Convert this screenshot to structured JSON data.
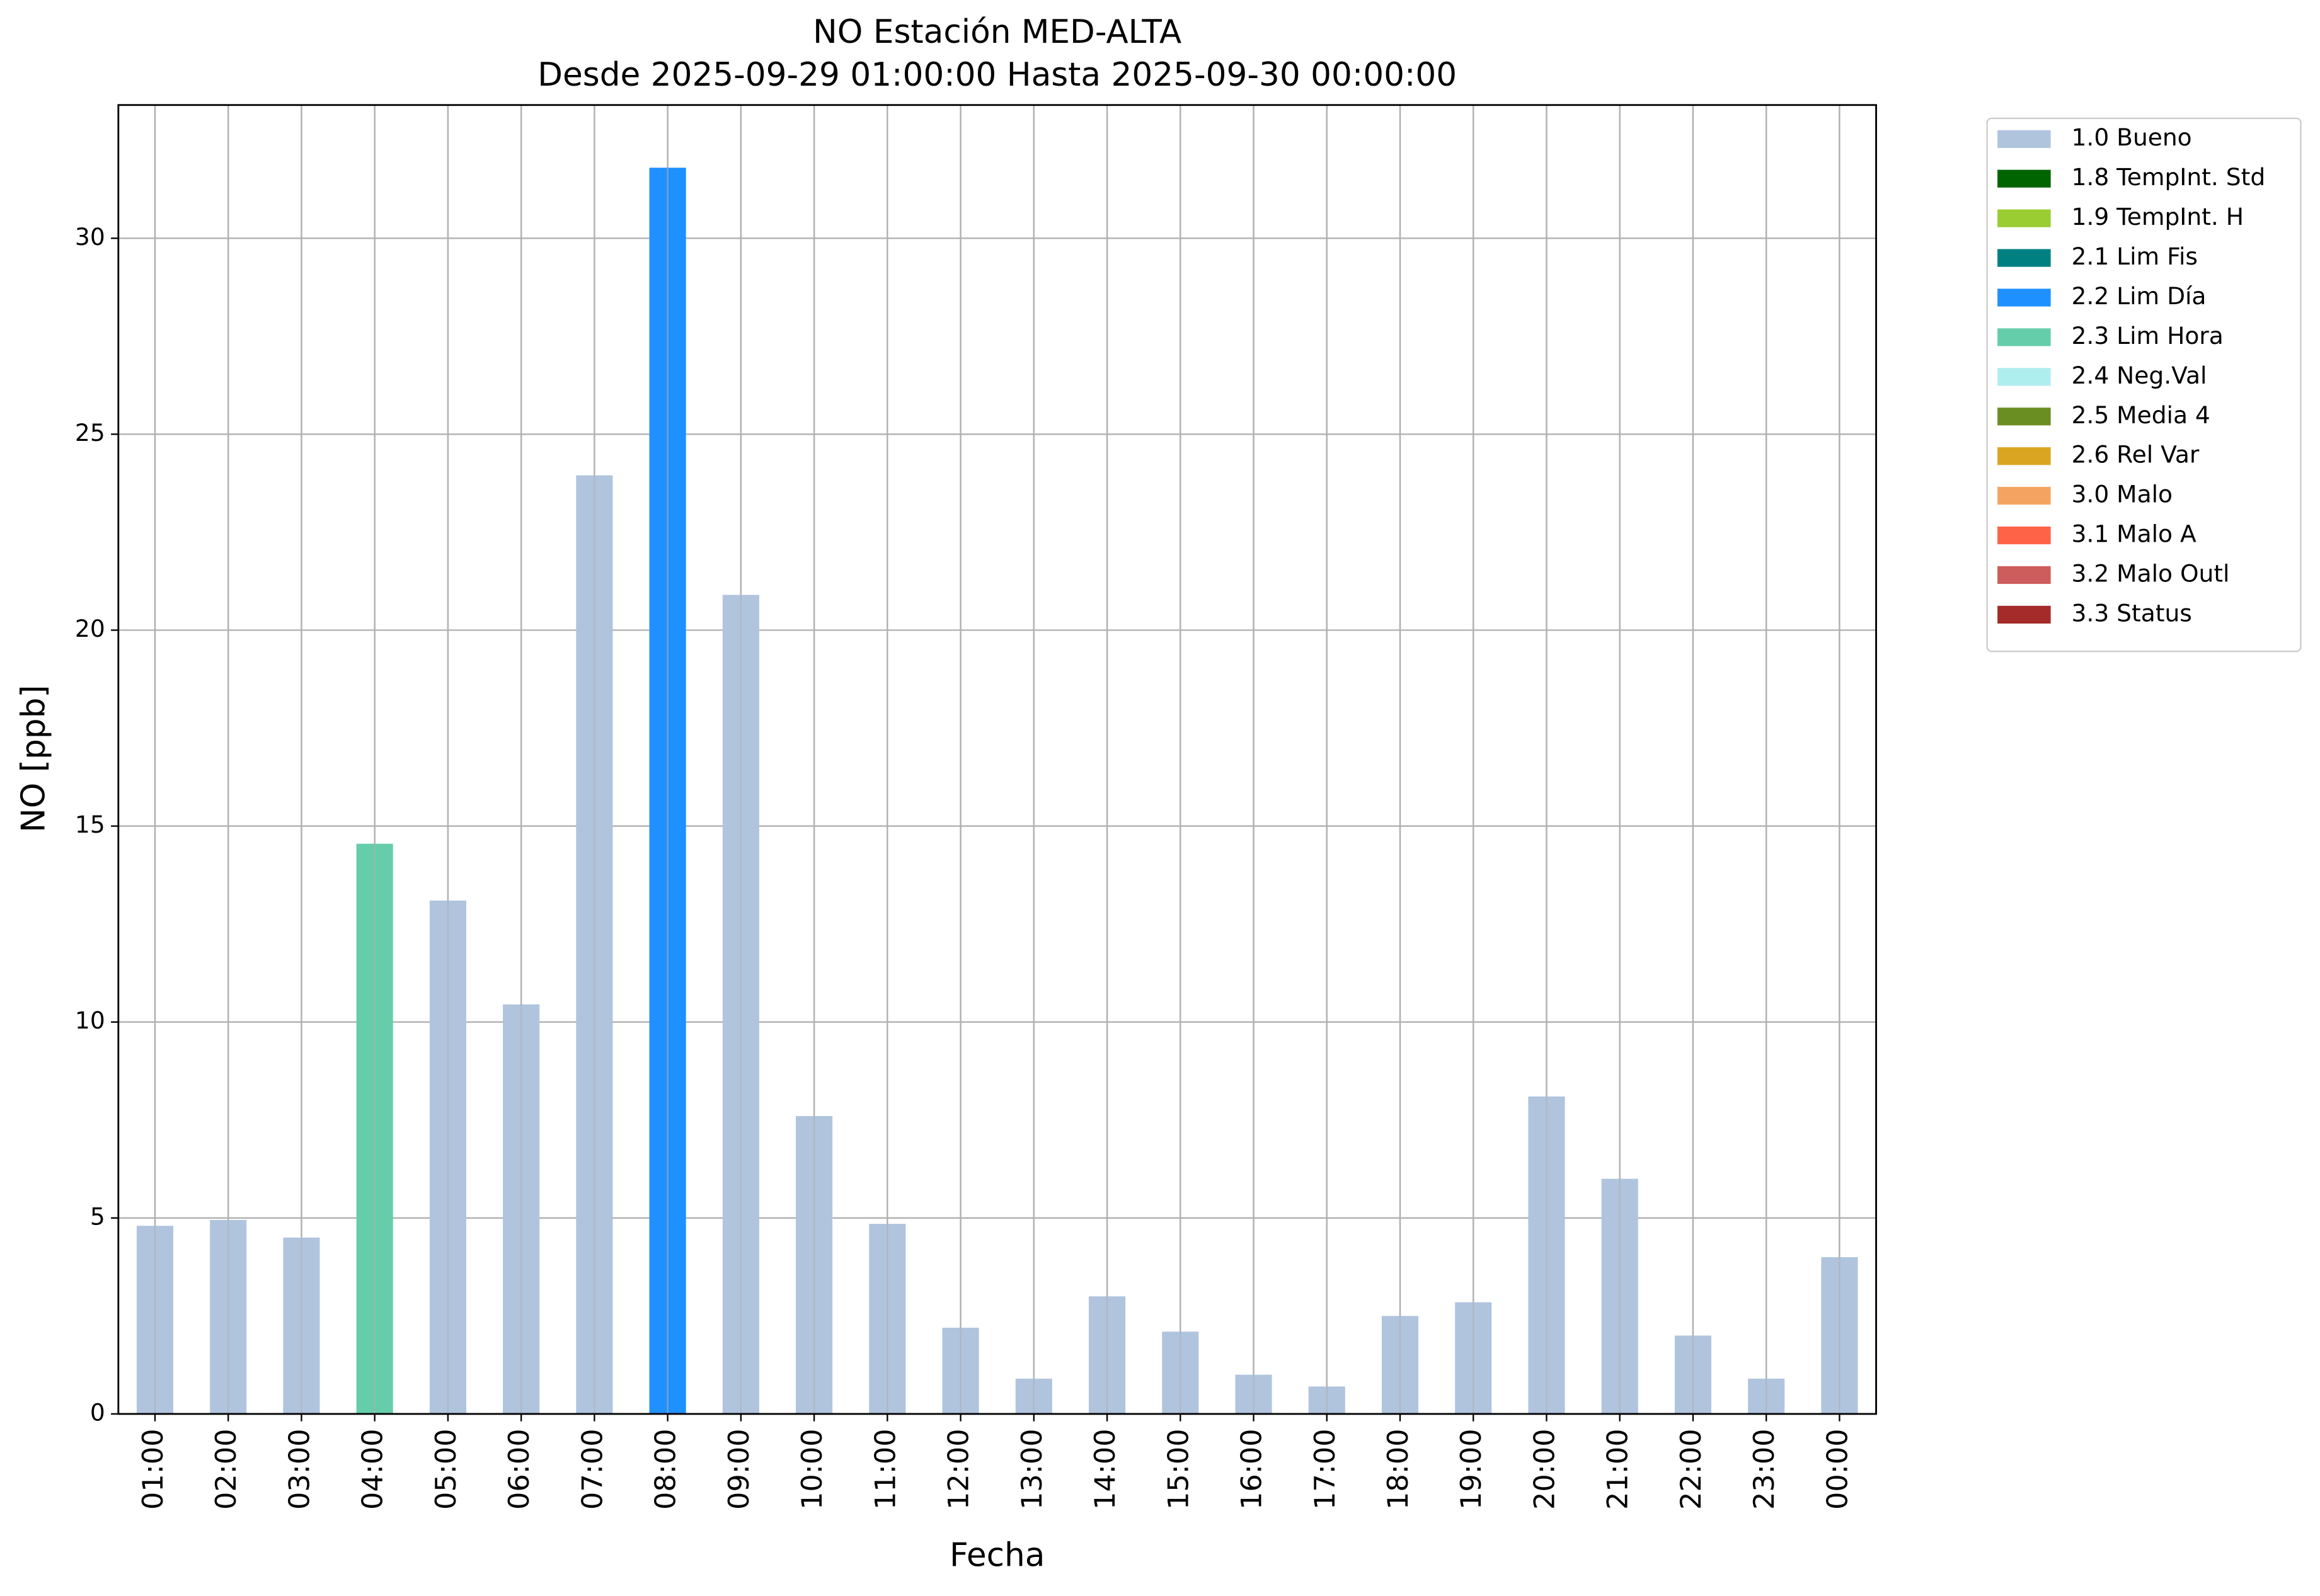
{
  "chart_data": {
    "type": "bar",
    "stacked": true,
    "title": "NO Estación MED-ALTA",
    "subtitle": "Desde 2025-09-29 01:00:00 Hasta 2025-09-30 00:00:00",
    "x_label": "Fecha",
    "y_label": "NO [ppb]",
    "categories": [
      "01:00",
      "02:00",
      "03:00",
      "04:00",
      "05:00",
      "06:00",
      "07:00",
      "08:00",
      "09:00",
      "10:00",
      "11:00",
      "12:00",
      "13:00",
      "14:00",
      "15:00",
      "16:00",
      "17:00",
      "18:00",
      "19:00",
      "20:00",
      "21:00",
      "22:00",
      "23:00",
      "00:00"
    ],
    "ylim": [
      0,
      33.4
    ],
    "yticks": [
      0,
      5,
      10,
      15,
      20,
      25,
      30
    ],
    "grid": true,
    "legend_position": "outside-right",
    "series": [
      {
        "name": "1.0 Bueno",
        "color": "#b0c4de",
        "values": [
          4.8,
          4.95,
          4.5,
          null,
          13.1,
          10.45,
          23.95,
          null,
          20.9,
          7.6,
          4.85,
          2.2,
          0.9,
          3.0,
          2.1,
          1.0,
          0.7,
          2.5,
          2.85,
          8.1,
          6.0,
          2.0,
          0.9,
          4.0
        ]
      },
      {
        "name": "1.8 TempInt. Std",
        "color": "#006400",
        "values": [
          null,
          null,
          null,
          null,
          null,
          null,
          null,
          null,
          null,
          null,
          null,
          null,
          null,
          null,
          null,
          null,
          null,
          null,
          null,
          null,
          null,
          null,
          null,
          null
        ]
      },
      {
        "name": "1.9 TempInt. H",
        "color": "#9acd32",
        "values": [
          null,
          null,
          null,
          null,
          null,
          null,
          null,
          null,
          null,
          null,
          null,
          null,
          null,
          null,
          null,
          null,
          null,
          null,
          null,
          null,
          null,
          null,
          null,
          null
        ]
      },
      {
        "name": "2.1 Lim Fis",
        "color": "#008080",
        "values": [
          null,
          null,
          null,
          null,
          null,
          null,
          null,
          null,
          null,
          null,
          null,
          null,
          null,
          null,
          null,
          null,
          null,
          null,
          null,
          null,
          null,
          null,
          null,
          null
        ]
      },
      {
        "name": "2.2 Lim Día",
        "color": "#1e90ff",
        "values": [
          null,
          null,
          null,
          null,
          null,
          null,
          null,
          31.8,
          null,
          null,
          null,
          null,
          null,
          null,
          null,
          null,
          null,
          null,
          null,
          null,
          null,
          null,
          null,
          null
        ]
      },
      {
        "name": "2.3 Lim Hora",
        "color": "#66cdaa",
        "values": [
          null,
          null,
          null,
          14.55,
          null,
          null,
          null,
          null,
          null,
          null,
          null,
          null,
          null,
          null,
          null,
          null,
          null,
          null,
          null,
          null,
          null,
          null,
          null,
          null
        ]
      },
      {
        "name": "2.4 Neg.Val",
        "color": "#afeeee",
        "values": [
          null,
          null,
          null,
          null,
          null,
          null,
          null,
          null,
          null,
          null,
          null,
          null,
          null,
          null,
          null,
          null,
          null,
          null,
          null,
          null,
          null,
          null,
          null,
          null
        ]
      },
      {
        "name": "2.5 Media 4",
        "color": "#6b8e23",
        "values": [
          null,
          null,
          null,
          null,
          null,
          null,
          null,
          null,
          null,
          null,
          null,
          null,
          null,
          null,
          null,
          null,
          null,
          null,
          null,
          null,
          null,
          null,
          null,
          null
        ]
      },
      {
        "name": "2.6 Rel Var",
        "color": "#daa520",
        "values": [
          null,
          null,
          null,
          null,
          null,
          null,
          null,
          null,
          null,
          null,
          null,
          null,
          null,
          null,
          null,
          null,
          null,
          null,
          null,
          null,
          null,
          null,
          null,
          null
        ]
      },
      {
        "name": "3.0 Malo",
        "color": "#f4a460",
        "values": [
          null,
          null,
          null,
          null,
          null,
          null,
          null,
          null,
          null,
          null,
          null,
          null,
          null,
          null,
          null,
          null,
          null,
          null,
          null,
          null,
          null,
          null,
          null,
          null
        ]
      },
      {
        "name": "3.1 Malo A",
        "color": "#ff6347",
        "values": [
          null,
          null,
          null,
          null,
          null,
          null,
          null,
          null,
          null,
          null,
          null,
          null,
          null,
          null,
          null,
          null,
          null,
          null,
          null,
          null,
          null,
          null,
          null,
          null
        ]
      },
      {
        "name": "3.2 Malo Outl",
        "color": "#cd5c5c",
        "values": [
          null,
          null,
          null,
          null,
          null,
          null,
          null,
          null,
          null,
          null,
          null,
          null,
          null,
          null,
          null,
          null,
          null,
          null,
          null,
          null,
          null,
          null,
          null,
          null
        ]
      },
      {
        "name": "3.3 Status",
        "color": "#a52a2a",
        "values": [
          null,
          null,
          null,
          null,
          null,
          null,
          null,
          null,
          null,
          null,
          null,
          null,
          null,
          null,
          null,
          null,
          null,
          null,
          null,
          null,
          null,
          null,
          null,
          null
        ]
      }
    ]
  }
}
